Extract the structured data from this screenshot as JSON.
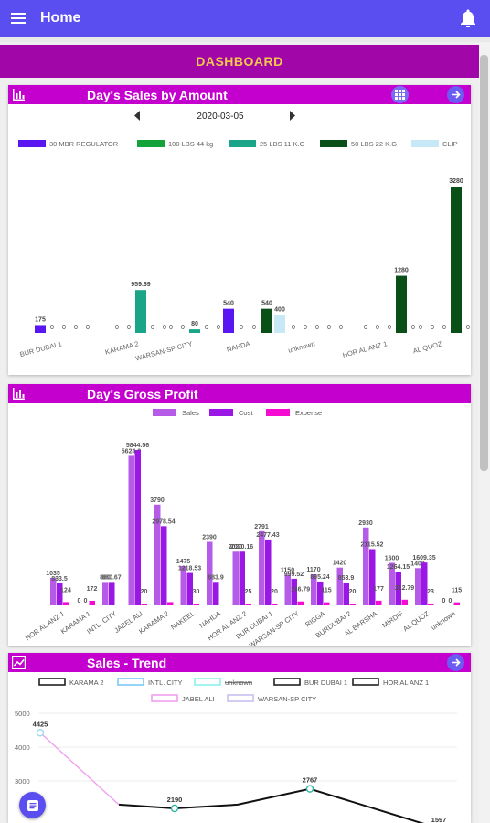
{
  "appbar": {
    "title": "Home",
    "menu_icon": "menu-icon",
    "bell_icon": "bell-icon",
    "color": "#5b4ef0"
  },
  "dashboard_label": "DASHBOARD",
  "sales_card": {
    "title": "Day's Sales by Amount",
    "date": "2020-03-05",
    "chart_data": {
      "type": "bar",
      "legend": [
        {
          "name": "30 MBR REGULATOR",
          "color": "#5a16f0"
        },
        {
          "name": "100 LBS 44 kg",
          "color": "#13a33a",
          "hidden": true
        },
        {
          "name": "25 LBS 11 K.G",
          "color": "#1aa589"
        },
        {
          "name": "50 LBS 22 K.G",
          "color": "#0b4f18"
        },
        {
          "name": "CLIP",
          "color": "#c7e8f7"
        }
      ],
      "categories": [
        "BUR DUBAI 1",
        "KARAMA 2",
        "WARSAN-SP CITY",
        "NAHDA",
        "unknown",
        "HOR AL ANZ 1",
        "AL QUOZ"
      ],
      "series": [
        {
          "name": "30 MBR REGULATOR",
          "values": [
            175,
            0,
            0,
            540,
            0,
            0,
            0
          ]
        },
        {
          "name": "100 LBS 44 kg",
          "values": [
            0,
            0,
            0,
            0,
            0,
            0,
            0
          ]
        },
        {
          "name": "25 LBS 11 K.G",
          "values": [
            0,
            959.69,
            80,
            0,
            0,
            0,
            0
          ]
        },
        {
          "name": "50 LBS 22 K.G",
          "values": [
            0,
            0,
            0,
            540,
            0,
            1280,
            3280
          ]
        },
        {
          "name": "CLIP",
          "values": [
            0,
            0,
            0,
            400,
            0,
            0,
            0
          ]
        }
      ],
      "labels": [
        [
          "175",
          "0",
          "0",
          "0",
          "0"
        ],
        [
          "0",
          "0",
          "959.69",
          "0",
          "0"
        ],
        [
          "0",
          "0",
          "80",
          "0",
          "0"
        ],
        [
          "540",
          "0",
          "0",
          "540",
          "400"
        ],
        [
          "0",
          "0",
          "0",
          "0",
          "0"
        ],
        [
          "0",
          "0",
          "0",
          "1280",
          "0"
        ],
        [
          "0",
          "0",
          "0",
          "3280",
          "0"
        ]
      ]
    }
  },
  "profit_card": {
    "title": "Day's Gross Profit",
    "chart_data": {
      "type": "bar",
      "legend": [
        {
          "name": "Sales",
          "color": "#b65be8"
        },
        {
          "name": "Cost",
          "color": "#9a17e6"
        },
        {
          "name": "Expense",
          "color": "#f50bd2"
        }
      ],
      "categories": [
        "HOR AL ANZ 1",
        "KARAMA 1",
        "INTL. CITY",
        "JABEL ALI",
        "KARAMA 2",
        "NAKEEL",
        "NAHDA",
        "HOR AL ANZ 2",
        "BUR DUBAI 1",
        "WARSAN-SP CITY",
        "RIGGA",
        "BURDUBAI 2",
        "AL BARSHA",
        "MIRDIF",
        "AL QUOZ",
        "unknown"
      ],
      "series": [
        {
          "name": "Sales",
          "values": [
            1035,
            0,
            880,
            5624.2,
            3790,
            1475,
            2390,
            2020,
            2791,
            1150,
            1170,
            1420,
            2930,
            1600,
            1400,
            0
          ]
        },
        {
          "name": "Cost",
          "values": [
            833.5,
            0,
            880.67,
            5844.56,
            2978.54,
            1218.53,
            883.9,
            2020.16,
            2477.43,
            999.52,
            895.24,
            853.9,
            2115.52,
            1264.15,
            1609.35,
            0
          ]
        },
        {
          "name": "Expense",
          "values": [
            124,
            172,
            0,
            20,
            122.5,
            30,
            0,
            25,
            20,
            146.79,
            115,
            20,
            177,
            212.79,
            23,
            115
          ]
        }
      ],
      "labels": {
        "sales": [
          "1035",
          "0",
          "880",
          "5624.2",
          "3790",
          "1475",
          "2390",
          "2020",
          "2791",
          "1150",
          "1170",
          "1420",
          "2930",
          "1600",
          "1400",
          "0"
        ],
        "cost": [
          "833.5",
          "0",
          "880.67",
          "5844.56",
          "2978.54",
          "1218.53",
          "883.9",
          "2020.16",
          "2477.43",
          "999.52",
          "895.24",
          "853.9",
          "2115.52",
          "1264.15",
          "1609.35",
          "0"
        ],
        "expense": [
          "124",
          "172",
          "",
          "20",
          "",
          "30",
          "",
          "25",
          "20",
          "146.79",
          "115",
          "20",
          "177",
          "212.79",
          "23",
          "115"
        ]
      }
    }
  },
  "trend_card": {
    "title": "Sales - Trend",
    "chart_data": {
      "type": "line",
      "legend_row1": [
        {
          "name": "KARAMA 2",
          "color": "#222222"
        },
        {
          "name": "INTL. CITY",
          "color": "#79c9f5"
        },
        {
          "name": "unknown",
          "color": "#8ef0f0",
          "hidden": true
        },
        {
          "name": "BUR DUBAI 1",
          "color": "#222222"
        },
        {
          "name": "HOR AL ANZ 1",
          "color": "#222222"
        }
      ],
      "legend_row2": [
        {
          "name": "JABEL ALI",
          "color": "#f0a0f0"
        },
        {
          "name": "WARSAN-SP CITY",
          "color": "#c9c0f0"
        }
      ],
      "y_ticks": [
        "5000",
        "4000",
        "3000"
      ],
      "ylim": [
        2300,
        5000
      ],
      "series": [
        {
          "name": "JABEL ALI",
          "points": [
            [
              0,
              4425
            ],
            [
              1,
              2300
            ]
          ],
          "labels": [
            "4425",
            ""
          ]
        },
        {
          "name": "KARAMA 2",
          "points": [
            [
              1,
              2300
            ],
            [
              2,
              2190
            ],
            [
              3,
              2300
            ],
            [
              4,
              2767
            ],
            [
              5,
              1597
            ]
          ],
          "labels": [
            "",
            "2190",
            "",
            "2767",
            "1597"
          ]
        }
      ]
    }
  },
  "icons": {
    "grid": "grid-icon",
    "next": "arrow-right-icon",
    "chart": "bar-chart-icon",
    "trend": "trend-chart-icon",
    "fab": "document-icon"
  }
}
